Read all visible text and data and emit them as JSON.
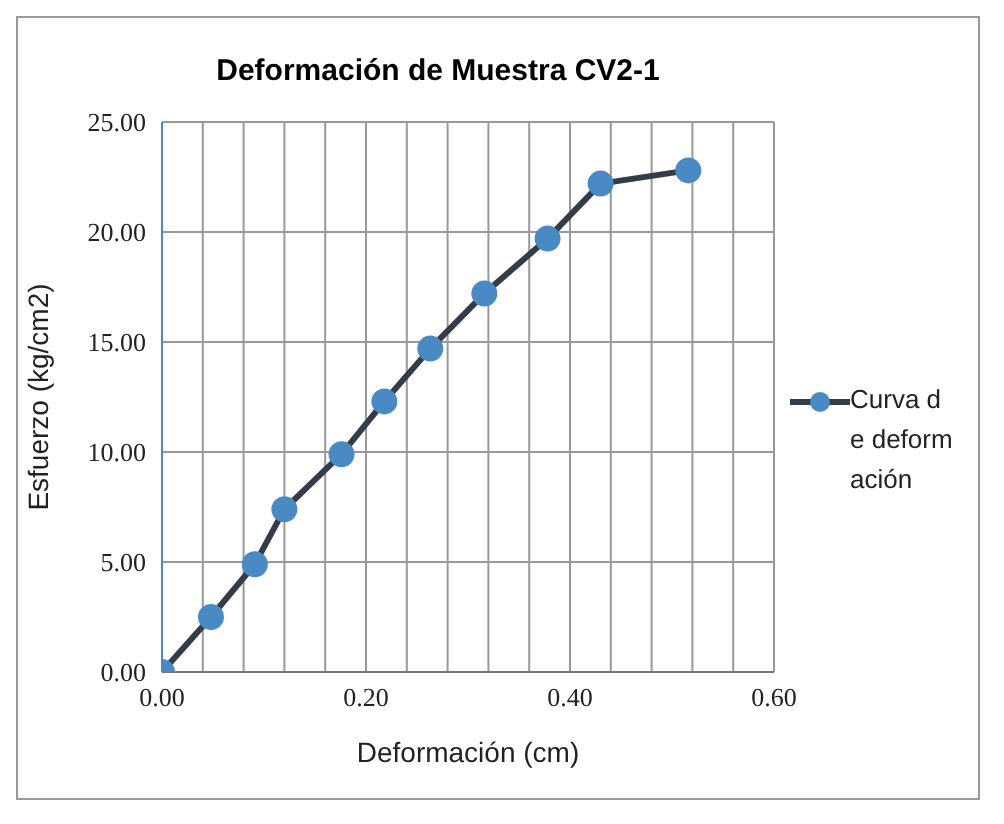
{
  "chart_data": {
    "type": "line",
    "title": "Deformación de Muestra CV2-1",
    "xlabel": "Deformación (cm)",
    "ylabel": "Esfuerzo (kg/cm2)",
    "x": [
      0,
      0.048,
      0.091,
      0.12,
      0.176,
      0.218,
      0.263,
      0.316,
      0.378,
      0.43,
      0.516
    ],
    "series": [
      {
        "name": "Curva de deformación",
        "color": "#4a8ac4",
        "values": [
          0,
          2.5,
          4.9,
          7.4,
          9.9,
          12.3,
          14.7,
          17.2,
          19.7,
          22.2,
          22.8
        ]
      }
    ],
    "xlim": [
      0,
      0.6
    ],
    "xticks": [
      {
        "value": 0,
        "label": "0.00"
      },
      {
        "value": 0.04,
        "label": null
      },
      {
        "value": 0.08,
        "label": null
      },
      {
        "value": 0.12,
        "label": null
      },
      {
        "value": 0.16,
        "label": null
      },
      {
        "value": 0.2,
        "label": "0.20"
      },
      {
        "value": 0.24,
        "label": null
      },
      {
        "value": 0.28,
        "label": null
      },
      {
        "value": 0.32,
        "label": null
      },
      {
        "value": 0.36,
        "label": null
      },
      {
        "value": 0.4,
        "label": "0.40"
      },
      {
        "value": 0.44,
        "label": null
      },
      {
        "value": 0.48,
        "label": null
      },
      {
        "value": 0.52,
        "label": null
      },
      {
        "value": 0.56,
        "label": null
      },
      {
        "value": 0.6,
        "label": "0.60"
      }
    ],
    "ylim": [
      0,
      25
    ],
    "yticks": [
      {
        "value": 0,
        "label": "0.00"
      },
      {
        "value": 5,
        "label": "5.00"
      },
      {
        "value": 10,
        "label": "10.00"
      },
      {
        "value": 15,
        "label": "15.00"
      },
      {
        "value": 20,
        "label": "20.00"
      },
      {
        "value": 25,
        "label": "25.00"
      }
    ],
    "grid": true,
    "legend": "right",
    "marker": "circle",
    "line_style": "solid"
  }
}
